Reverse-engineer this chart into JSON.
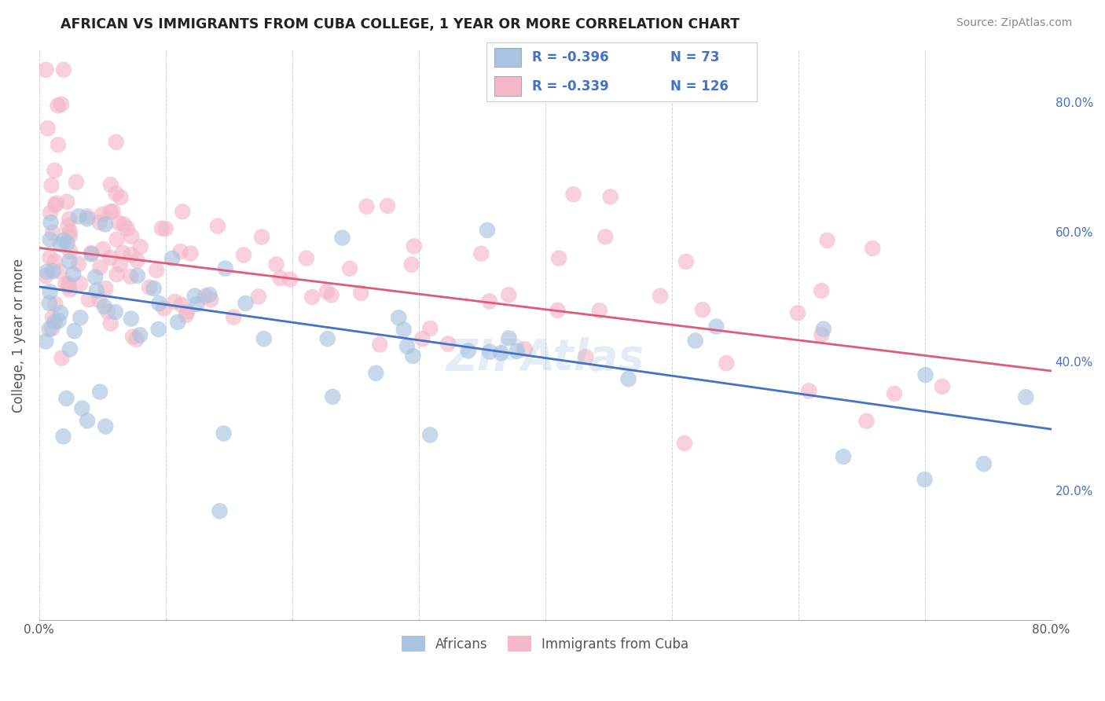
{
  "title": "AFRICAN VS IMMIGRANTS FROM CUBA COLLEGE, 1 YEAR OR MORE CORRELATION CHART",
  "source": "Source: ZipAtlas.com",
  "ylabel": "College, 1 year or more",
  "xlim": [
    0.0,
    0.8
  ],
  "ylim": [
    0.0,
    0.88
  ],
  "x_ticks": [
    0.0,
    0.1,
    0.2,
    0.3,
    0.4,
    0.5,
    0.6,
    0.7,
    0.8
  ],
  "x_tick_labels": [
    "0.0%",
    "",
    "",
    "",
    "",
    "",
    "",
    "",
    "80.0%"
  ],
  "y_ticks_right": [
    0.2,
    0.4,
    0.6,
    0.8
  ],
  "y_tick_labels_right": [
    "20.0%",
    "40.0%",
    "60.0%",
    "80.0%"
  ],
  "legend_r_african": "-0.396",
  "legend_n_african": "73",
  "legend_r_cuba": "-0.339",
  "legend_n_cuba": "126",
  "african_color": "#a8c4e0",
  "cuba_color": "#f4b8c8",
  "african_line_color": "#4472c4",
  "cuba_line_color": "#e05a7a",
  "watermark": "ZIPAtlas",
  "background_color": "#ffffff",
  "grid_color": "#cccccc",
  "african_line_x0": 0.0,
  "african_line_y0": 0.515,
  "african_line_x1": 0.8,
  "african_line_y1": 0.295,
  "cuba_line_x0": 0.0,
  "cuba_line_y0": 0.575,
  "cuba_line_x1": 0.8,
  "cuba_line_y1": 0.385
}
